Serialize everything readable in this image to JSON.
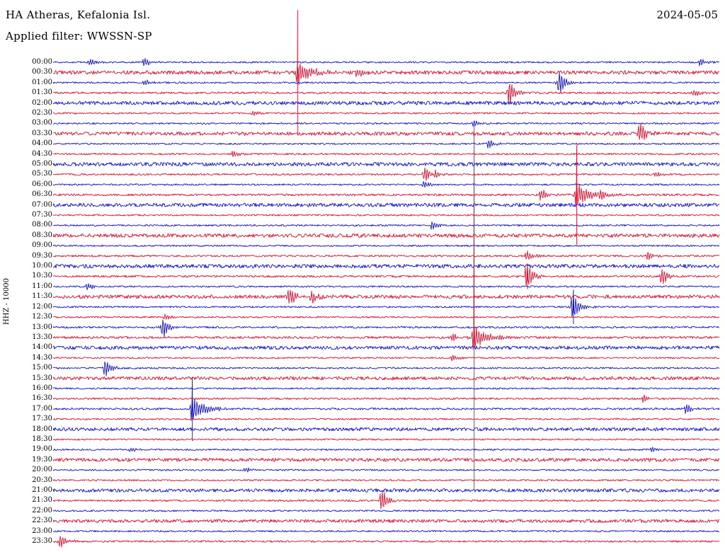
{
  "header": {
    "station": "HA Atheras, Kefalonia Isl.",
    "date": "2024-05-05",
    "filter_label": "Applied filter: WWSSN-SP"
  },
  "scale_label": "HHZ - 10000",
  "colors": {
    "blue": "#1212cc",
    "red": "#e01030",
    "background": "#ffffff",
    "text": "#000000"
  },
  "chart_data": {
    "type": "line",
    "title": "Helicorder seismogram — HA Atheras, Kefalonia Isl. — 2024-05-05",
    "ylabel": "HHZ - 10000",
    "xlabel": "",
    "minutes_per_row": 30,
    "legend": "rows alternate blue/red, one trace per 30 minutes, 00:00-23:30",
    "rows": [
      {
        "time": "00:00",
        "color": "blue",
        "noise": 1.15,
        "events": [
          {
            "x": 0.056,
            "amp": 4
          },
          {
            "x": 0.138,
            "amp": 6
          },
          {
            "x": 0.972,
            "amp": 4
          }
        ]
      },
      {
        "time": "00:30",
        "color": "red",
        "noise": 2.6,
        "events": [
          {
            "x": 0.367,
            "amp": 88,
            "ampDown": 88
          },
          {
            "x": 0.457,
            "amp": 6
          }
        ]
      },
      {
        "time": "01:00",
        "color": "blue",
        "noise": 1.15,
        "events": [
          {
            "x": 0.138,
            "amp": 4
          },
          {
            "x": 0.76,
            "amp": 15
          }
        ]
      },
      {
        "time": "01:30",
        "color": "red",
        "noise": 1.4,
        "events": [
          {
            "x": 0.685,
            "amp": 17
          },
          {
            "x": 0.962,
            "amp": 5
          }
        ]
      },
      {
        "time": "02:00",
        "color": "blue",
        "noise": 2.6,
        "events": []
      },
      {
        "time": "02:30",
        "color": "red",
        "noise": 1.15,
        "events": [
          {
            "x": 0.3,
            "amp": 3
          }
        ]
      },
      {
        "time": "03:00",
        "color": "blue",
        "noise": 1.15,
        "events": [
          {
            "x": 0.632,
            "amp": 4
          }
        ]
      },
      {
        "time": "03:30",
        "color": "red",
        "noise": 2.5,
        "events": [
          {
            "x": 0.882,
            "amp": 12
          }
        ]
      },
      {
        "time": "04:00",
        "color": "blue",
        "noise": 1.15,
        "events": [
          {
            "x": 0.654,
            "amp": 6
          }
        ]
      },
      {
        "time": "04:30",
        "color": "red",
        "noise": 1.25,
        "events": [
          {
            "x": 0.272,
            "amp": 4
          }
        ]
      },
      {
        "time": "05:00",
        "color": "blue",
        "noise": 2.6,
        "events": []
      },
      {
        "time": "05:30",
        "color": "red",
        "noise": 1.3,
        "events": [
          {
            "x": 0.558,
            "amp": 9
          },
          {
            "x": 0.574,
            "amp": 7
          },
          {
            "x": 0.905,
            "amp": 4
          }
        ]
      },
      {
        "time": "06:00",
        "color": "blue",
        "noise": 1.15,
        "events": [
          {
            "x": 0.556,
            "amp": 4
          }
        ]
      },
      {
        "time": "06:30",
        "color": "red",
        "noise": 1.5,
        "events": [
          {
            "x": 0.733,
            "amp": 7
          },
          {
            "x": 0.786,
            "amp": 70,
            "ampDown": 70
          },
          {
            "x": 0.822,
            "amp": 6
          }
        ]
      },
      {
        "time": "07:00",
        "color": "blue",
        "noise": 2.6,
        "events": []
      },
      {
        "time": "07:30",
        "color": "red",
        "noise": 1.15,
        "events": []
      },
      {
        "time": "08:00",
        "color": "blue",
        "noise": 1.15,
        "events": [
          {
            "x": 0.569,
            "amp": 6
          }
        ]
      },
      {
        "time": "08:30",
        "color": "red",
        "noise": 2.6,
        "events": []
      },
      {
        "time": "09:00",
        "color": "blue",
        "noise": 1.15,
        "events": []
      },
      {
        "time": "09:30",
        "color": "red",
        "noise": 1.3,
        "events": [
          {
            "x": 0.712,
            "amp": 6
          },
          {
            "x": 0.893,
            "amp": 5
          }
        ]
      },
      {
        "time": "10:00",
        "color": "blue",
        "noise": 2.6,
        "events": []
      },
      {
        "time": "10:30",
        "color": "red",
        "noise": 1.4,
        "events": [
          {
            "x": 0.712,
            "amp": 18
          },
          {
            "x": 0.914,
            "amp": 11
          }
        ]
      },
      {
        "time": "11:00",
        "color": "blue",
        "noise": 1.15,
        "events": [
          {
            "x": 0.053,
            "amp": 4
          }
        ]
      },
      {
        "time": "11:30",
        "color": "red",
        "noise": 2.5,
        "events": [
          {
            "x": 0.356,
            "amp": 10
          },
          {
            "x": 0.388,
            "amp": 8
          }
        ]
      },
      {
        "time": "12:00",
        "color": "blue",
        "noise": 1.15,
        "events": [
          {
            "x": 0.781,
            "amp": 24
          }
        ]
      },
      {
        "time": "12:30",
        "color": "red",
        "noise": 1.15,
        "events": [
          {
            "x": 0.168,
            "amp": 4
          }
        ]
      },
      {
        "time": "13:00",
        "color": "blue",
        "noise": 1.3,
        "events": [
          {
            "x": 0.165,
            "amp": 13
          }
        ]
      },
      {
        "time": "13:30",
        "color": "red",
        "noise": 1.6,
        "events": [
          {
            "x": 0.6,
            "amp": 5
          },
          {
            "x": 0.632,
            "amp": 300,
            "ampDown": 215
          }
        ]
      },
      {
        "time": "14:00",
        "color": "blue",
        "noise": 2.5,
        "events": []
      },
      {
        "time": "14:30",
        "color": "red",
        "noise": 1.15,
        "events": [
          {
            "x": 0.6,
            "amp": 4
          }
        ]
      },
      {
        "time": "15:00",
        "color": "blue",
        "noise": 1.15,
        "events": [
          {
            "x": 0.078,
            "amp": 11
          }
        ]
      },
      {
        "time": "15:30",
        "color": "red",
        "noise": 2.4,
        "events": []
      },
      {
        "time": "16:00",
        "color": "blue",
        "noise": 1.15,
        "events": []
      },
      {
        "time": "16:30",
        "color": "red",
        "noise": 1.3,
        "events": [
          {
            "x": 0.887,
            "amp": 5
          }
        ]
      },
      {
        "time": "17:00",
        "color": "blue",
        "noise": 1.4,
        "events": [
          {
            "x": 0.209,
            "amp": 45,
            "ampDown": 45
          },
          {
            "x": 0.951,
            "amp": 6
          }
        ]
      },
      {
        "time": "17:30",
        "color": "red",
        "noise": 1.15,
        "events": []
      },
      {
        "time": "18:00",
        "color": "blue",
        "noise": 2.4,
        "events": []
      },
      {
        "time": "18:30",
        "color": "red",
        "noise": 1.15,
        "events": []
      },
      {
        "time": "19:00",
        "color": "blue",
        "noise": 1.15,
        "events": [
          {
            "x": 0.117,
            "amp": 3
          },
          {
            "x": 0.9,
            "amp": 3
          }
        ]
      },
      {
        "time": "19:30",
        "color": "red",
        "noise": 2.4,
        "events": []
      },
      {
        "time": "20:00",
        "color": "blue",
        "noise": 1.15,
        "events": [
          {
            "x": 0.29,
            "amp": 3
          }
        ]
      },
      {
        "time": "20:30",
        "color": "red",
        "noise": 1.15,
        "events": []
      },
      {
        "time": "21:00",
        "color": "blue",
        "noise": 2.4,
        "events": []
      },
      {
        "time": "21:30",
        "color": "red",
        "noise": 1.3,
        "events": [
          {
            "x": 0.494,
            "amp": 13
          }
        ]
      },
      {
        "time": "22:00",
        "color": "blue",
        "noise": 1.15,
        "events": []
      },
      {
        "time": "22:30",
        "color": "red",
        "noise": 2.3,
        "events": []
      },
      {
        "time": "23:00",
        "color": "blue",
        "noise": 1.15,
        "events": []
      },
      {
        "time": "23:30",
        "color": "red",
        "noise": 1.3,
        "events": [
          {
            "x": 0.011,
            "amp": 9
          }
        ]
      }
    ]
  }
}
